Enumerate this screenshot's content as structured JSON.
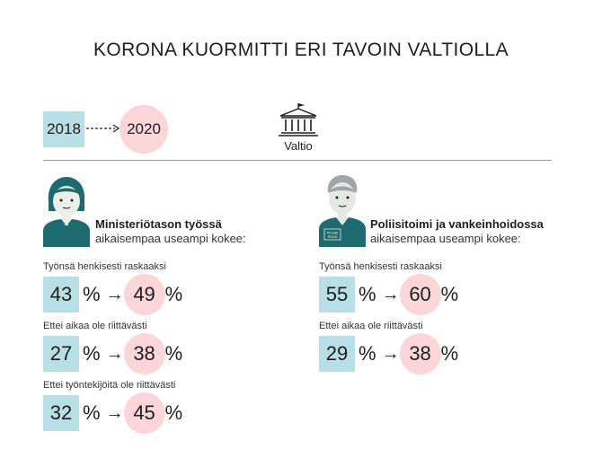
{
  "title": "KORONA KUORMITTI ERI TAVOIN VALTIOLLA",
  "years": {
    "from": "2018",
    "to": "2020"
  },
  "valtio_label": "Valtio",
  "arrow_glyph": "→",
  "percent_sign": "%",
  "groups": [
    {
      "heading": "Ministeriötason työssä",
      "subheading": "aikaisempaa useampi kokee:",
      "rows": [
        {
          "label": "Työnsä henkisesti raskaaksi",
          "from": "43",
          "to": "49"
        },
        {
          "label": "Ettei aikaa ole riittävästi",
          "from": "27",
          "to": "38"
        },
        {
          "label": "Ettei työntekijöitä ole riittävästi",
          "from": "32",
          "to": "45"
        }
      ]
    },
    {
      "heading": "Poliisitoimi ja vankeinhoidossa",
      "subheading": "aikaisempaa useampi kokee:",
      "badge_text": "POLIISI\nPOLIS",
      "rows": [
        {
          "label": "Työnsä henkisesti raskaaksi",
          "from": "55",
          "to": "60"
        },
        {
          "label": "Ettei aikaa ole riittävästi",
          "from": "29",
          "to": "38"
        }
      ]
    }
  ],
  "colors": {
    "box": "#b9dfe6",
    "circle": "#fbd6d9",
    "teal": "#1d6b6e",
    "gray_figure": "#9ea6a8"
  },
  "icons": [
    "government-building-icon",
    "woman-avatar-icon",
    "police-officer-avatar-icon",
    "dashed-arrow-icon"
  ]
}
